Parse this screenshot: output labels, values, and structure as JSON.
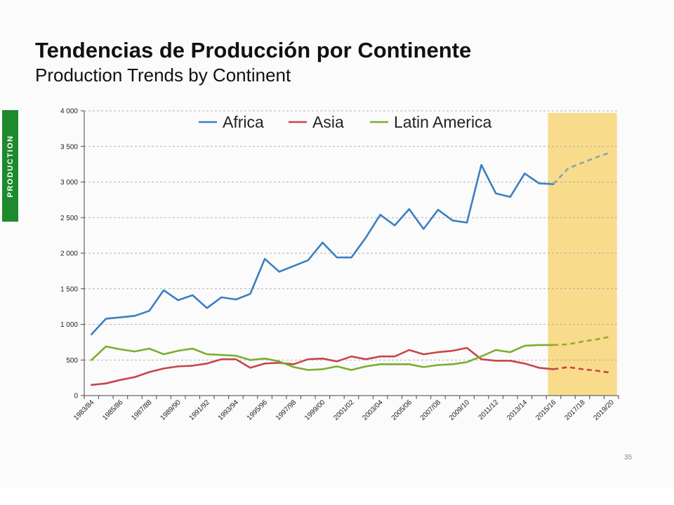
{
  "slide": {
    "title": "Tendencias de Producción por Continente",
    "subtitle": "Production Trends by Continent",
    "side_tab": "PRODUCTION",
    "page_number": "35"
  },
  "chart_data": {
    "type": "line",
    "title": "",
    "xlabel": "",
    "ylabel": "",
    "ylim": [
      0,
      4000
    ],
    "yticks": [
      "0",
      "500",
      "1 000",
      "1 500",
      "2 000",
      "2 500",
      "3 000",
      "3 500",
      "4 000"
    ],
    "grid": true,
    "legend": "top",
    "highlight_region": {
      "from": "2015/16",
      "to": "2019/20",
      "color": "#f8dc8c"
    },
    "x": [
      "1983/84",
      "1984/85",
      "1985/86",
      "1986/87",
      "1987/88",
      "1988/89",
      "1989/90",
      "1990/91",
      "1991/92",
      "1992/93",
      "1993/94",
      "1994/95",
      "1995/96",
      "1996/97",
      "1997/98",
      "1998/99",
      "1999/00",
      "2000/01",
      "2001/02",
      "2002/03",
      "2003/04",
      "2004/05",
      "2005/06",
      "2006/07",
      "2007/08",
      "2008/09",
      "2009/10",
      "2010/11",
      "2011/12",
      "2012/13",
      "2013/14",
      "2014/15",
      "2015/16",
      "2016/17",
      "2017/18",
      "2018/19",
      "2019/20"
    ],
    "xtick_labels": [
      "1983/84",
      "1985/86",
      "1987/88",
      "1989/90",
      "1991/92",
      "1993/94",
      "1995/96",
      "1997/98",
      "1999/00",
      "2001/02",
      "2003/04",
      "2005/06",
      "2007/08",
      "2009/10",
      "2011/12",
      "2013/14",
      "2015/16",
      "2017/18",
      "2019/20"
    ],
    "projection_start": "2015/16",
    "series": [
      {
        "name": "Africa",
        "color": "#3a7fc4",
        "projection_color": "#8aa6b0",
        "values": [
          860,
          1080,
          1100,
          1120,
          1190,
          1480,
          1340,
          1410,
          1230,
          1380,
          1350,
          1430,
          1920,
          1740,
          1820,
          1900,
          2150,
          1940,
          1940,
          2220,
          2540,
          2390,
          2620,
          2340,
          2610,
          2460,
          2430,
          3240,
          2840,
          2790,
          3120,
          2980,
          2970,
          3190,
          3270,
          3350,
          3420
        ]
      },
      {
        "name": "Asia",
        "color": "#c9444a",
        "projection_color": "#c9444a",
        "values": [
          150,
          170,
          220,
          260,
          330,
          380,
          410,
          420,
          450,
          510,
          510,
          390,
          450,
          460,
          440,
          510,
          520,
          480,
          550,
          510,
          550,
          550,
          640,
          580,
          610,
          630,
          670,
          510,
          490,
          490,
          450,
          390,
          370,
          400,
          370,
          350,
          320
        ]
      },
      {
        "name": "Latin America",
        "color": "#7aae2f",
        "projection_color": "#9aab2a",
        "values": [
          500,
          690,
          650,
          620,
          660,
          580,
          630,
          660,
          580,
          570,
          560,
          500,
          520,
          480,
          400,
          360,
          370,
          410,
          360,
          410,
          440,
          440,
          440,
          400,
          430,
          440,
          470,
          550,
          640,
          610,
          700,
          710,
          710,
          720,
          760,
          790,
          830
        ]
      }
    ]
  }
}
